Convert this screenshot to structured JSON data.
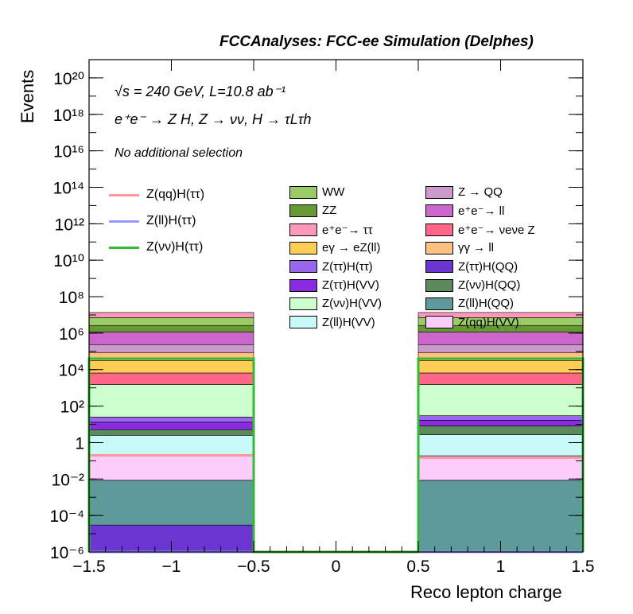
{
  "title": "FCCAnalyses: FCC-ee Simulation (Delphes)",
  "annotations": {
    "line1": "√s = 240 GeV, L=10.8 ab⁻¹",
    "line2": "e⁺e⁻ → Z H, Z → νν, H → τLτh",
    "line3": "No additional selection"
  },
  "chart_data": {
    "type": "bar",
    "style": "stacked-histogram-log",
    "xlabel": "Reco lepton charge",
    "ylabel": "Events",
    "xlim": [
      -1.5,
      1.5
    ],
    "ylim": [
      1e-06,
      1e+21
    ],
    "log_y": true,
    "grid": false,
    "x_ticks": [
      "−1.5",
      "−1",
      "−0.5",
      "0",
      "0.5",
      "1",
      "1.5"
    ],
    "y_ticks": [
      "10⁻⁶",
      "10⁻⁴",
      "10⁻²",
      "1",
      "10²",
      "10⁴",
      "10⁶",
      "10⁸",
      "10¹⁰",
      "10¹²",
      "10¹⁴",
      "10¹⁶",
      "10¹⁸",
      "10²⁰"
    ],
    "bins": [
      [
        -1.5,
        -0.5
      ],
      [
        -0.5,
        0.5
      ],
      [
        0.5,
        1.5
      ]
    ],
    "stack": [
      {
        "name": "Z(ττ)H(QQ)",
        "color": "#6a35d0",
        "values": [
          3e-05,
          0,
          0
        ]
      },
      {
        "name": "Z(ll)H(QQ)",
        "color": "#5f9a9a",
        "values": [
          0.0085,
          0,
          0.0085
        ]
      },
      {
        "name": "Z(qq)H(VV)",
        "color": "#fccdfa",
        "values": [
          0.19,
          0,
          0.18
        ]
      },
      {
        "name": "Z(ll)H(VV)",
        "color": "#c8fafa",
        "values": [
          2.3,
          0,
          2.5
        ]
      },
      {
        "name": "Z(νν)H(QQ)",
        "color": "#5c8a5c",
        "values": [
          2.6,
          0,
          5.5
        ]
      },
      {
        "name": "Z(ττ)H(VV)",
        "color": "#8a2be2",
        "values": [
          8,
          0,
          8.5
        ]
      },
      {
        "name": "Z(ττ)H(ττ)",
        "color": "#9966ee",
        "values": [
          12,
          0,
          13
        ]
      },
      {
        "name": "Z(νν)H(VV)",
        "color": "#ccffcc",
        "values": [
          1500,
          0,
          1500
        ]
      },
      {
        "name": "e⁺e⁻→ νeνe Z",
        "color": "#ff6688",
        "values": [
          5000,
          0,
          5000
        ]
      },
      {
        "name": "eγ → eZ(ll)",
        "color": "#ffcc55",
        "values": [
          25000,
          0,
          25000
        ]
      },
      {
        "name": "γγ → ll",
        "color": "#ffc080",
        "values": [
          55000,
          0,
          55000
        ]
      },
      {
        "name": "Z → QQ",
        "color": "#cc99cc",
        "values": [
          150000,
          0,
          150000
        ]
      },
      {
        "name": "e⁺e⁻→ ll",
        "color": "#cc66cc",
        "values": [
          900000,
          0,
          900000
        ]
      },
      {
        "name": "ZZ",
        "color": "#669933",
        "values": [
          1500000,
          0,
          1500000
        ]
      },
      {
        "name": "WW",
        "color": "#99cc66",
        "values": [
          4500000,
          0,
          4500000
        ]
      },
      {
        "name": "e⁺e⁻→ ττ",
        "color": "#ff99bb",
        "values": [
          6500000,
          0,
          6500000
        ]
      }
    ],
    "signals": [
      {
        "name": "Z(qq)H(ττ)",
        "color": "#ff9999",
        "values": [
          0.2,
          0,
          0.15
        ]
      },
      {
        "name": "Z(ll)H(ττ)",
        "color": "#9999ff",
        "values": [
          0.0,
          0,
          0.0
        ]
      },
      {
        "name": "Z(νν)H(ττ)",
        "color": "#33bb33",
        "values": [
          40000,
          0,
          40000
        ]
      }
    ],
    "legend_boxes": [
      {
        "name": "WW",
        "color": "#99cc66"
      },
      {
        "name": "ZZ",
        "color": "#669933"
      },
      {
        "name": "e⁺e⁻→ ττ",
        "color": "#ff99bb"
      },
      {
        "name": "eγ → eZ(ll)",
        "color": "#ffcc55"
      },
      {
        "name": "Z(ττ)H(ττ)",
        "color": "#9966ee"
      },
      {
        "name": "Z(ττ)H(VV)",
        "color": "#8a2be2"
      },
      {
        "name": "Z(νν)H(VV)",
        "color": "#ccffcc"
      },
      {
        "name": "Z(ll)H(VV)",
        "color": "#c8fafa"
      },
      {
        "name": "Z → QQ",
        "color": "#cc99cc"
      },
      {
        "name": "e⁺e⁻→ ll",
        "color": "#cc66cc"
      },
      {
        "name": "e⁺e⁻→ νeνe Z",
        "color": "#ff6688"
      },
      {
        "name": "γγ → ll",
        "color": "#ffc080"
      },
      {
        "name": "Z(ττ)H(QQ)",
        "color": "#6a35d0"
      },
      {
        "name": "Z(νν)H(QQ)",
        "color": "#5c8a5c"
      },
      {
        "name": "Z(ll)H(QQ)",
        "color": "#5f9a9a"
      },
      {
        "name": "Z(qq)H(VV)",
        "color": "#fccdfa"
      }
    ],
    "legend_lines": [
      {
        "name": "Z(qq)H(ττ)",
        "color": "#ff9999"
      },
      {
        "name": "Z(ll)H(ττ)",
        "color": "#9999ff"
      },
      {
        "name": "Z(νν)H(ττ)",
        "color": "#33bb33"
      }
    ]
  }
}
